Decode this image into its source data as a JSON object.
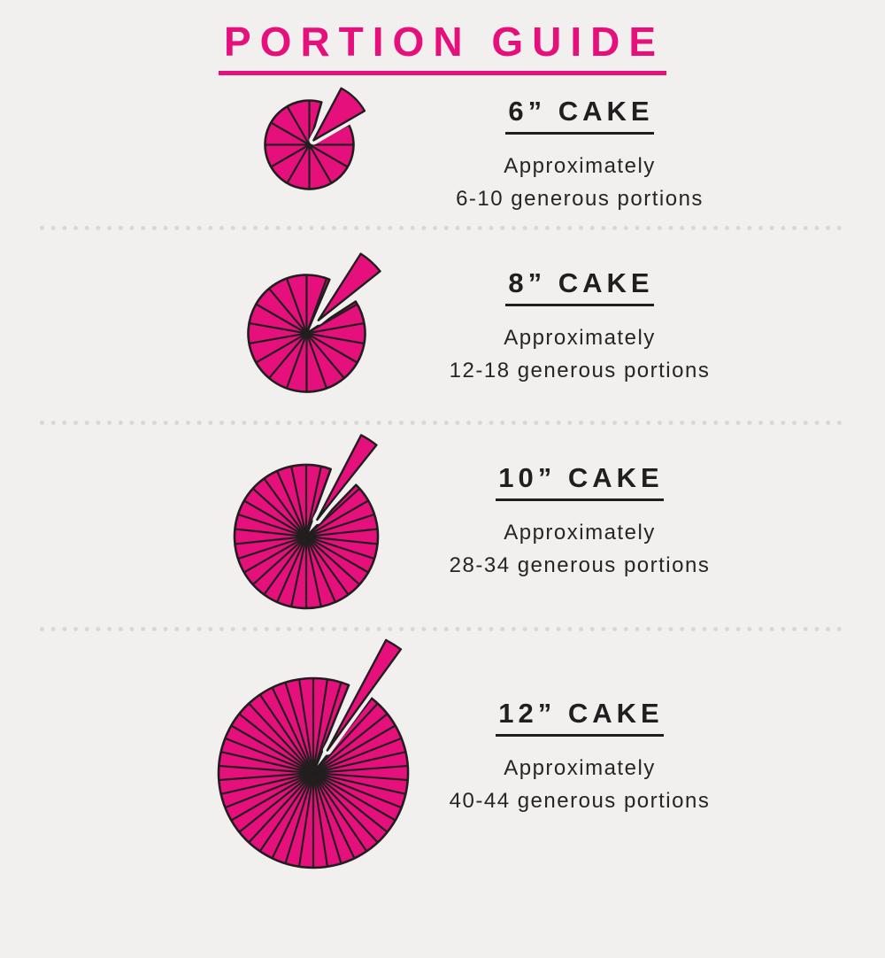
{
  "title": {
    "text": "PORTION GUIDE"
  },
  "sections": [
    {
      "heading": "6” CAKE",
      "line1": "Approximately",
      "line2": "6-10 generous portions",
      "slices_shown": 12
    },
    {
      "heading": "8” CAKE",
      "line1": "Approximately",
      "line2": "12-18 generous portions",
      "slices_shown": 18
    },
    {
      "heading": "10” CAKE",
      "line1": "Approximately",
      "line2": "28-34 generous portions",
      "slices_shown": 30
    },
    {
      "heading": "12” CAKE",
      "line1": "Approximately",
      "line2": "40-44 generous portions",
      "slices_shown": 42
    }
  ],
  "colors": {
    "pink": "#e6107c",
    "ink": "#221e1f",
    "background": "#f1f0ee",
    "divider_dot": "#d8d7d4"
  },
  "chart_data": {
    "type": "pie",
    "title": "PORTION GUIDE",
    "description": "Cake portion guide infographic: four cake diameters, each drawn as a sliced pink cake (top view) with one slice pulled out, and the approximate number of generous portions.",
    "items": [
      {
        "cake_size": "6” CAKE",
        "portions_min": 6,
        "portions_max": 10,
        "slices_drawn": 12
      },
      {
        "cake_size": "8” CAKE",
        "portions_min": 12,
        "portions_max": 18,
        "slices_drawn": 18
      },
      {
        "cake_size": "10” CAKE",
        "portions_min": 28,
        "portions_max": 34,
        "slices_drawn": 30
      },
      {
        "cake_size": "12” CAKE",
        "portions_min": 40,
        "portions_max": 44,
        "slices_drawn": 42
      }
    ],
    "legend_position": "none",
    "grid": false
  }
}
